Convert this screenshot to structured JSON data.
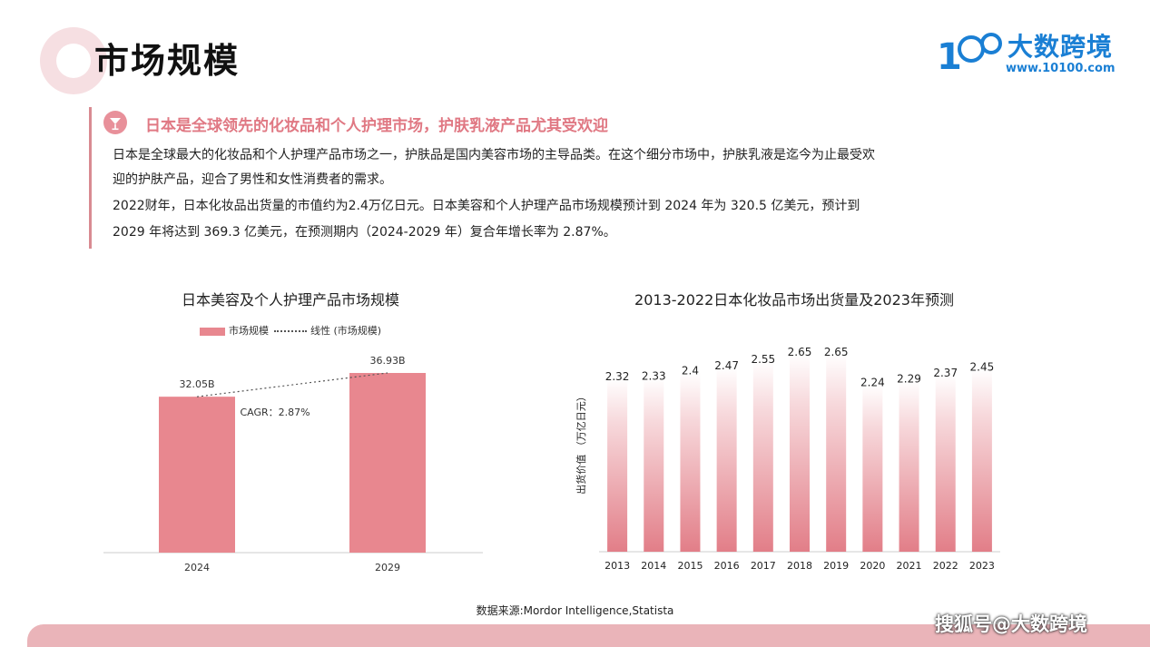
{
  "header": {
    "title": "市场规模",
    "logo_name": "大数跨境",
    "logo_url": "www.10100.com"
  },
  "section": {
    "subheading": "日本是全球领先的化妆品和个人护理市场，护肤乳液产品尤其受欢迎",
    "paragraphs": [
      "日本是全球最大的化妆品和个人护理产品市场之一，护肤品是国内美容市场的主导品类。在这个细分市场中，护肤乳液是迄今为止最受欢",
      "迎的护肤产品，迎合了男性和女性消费者的需求。",
      "2022财年，日本化妆品出货量的市值约为2.4万亿日元。日本美容和个人护理产品市场规模预计到 2024 年为 320.5 亿美元，预计到",
      "2029 年将达到 369.3 亿美元，在预测期内（2024-2029 年）复合年增长率为 2.87%。"
    ]
  },
  "chart_data": [
    {
      "type": "bar",
      "title": "日本美容及个人护理产品市场规模",
      "categories": [
        "2024",
        "2029"
      ],
      "values": [
        32.05,
        36.93
      ],
      "data_labels": [
        "32.05B",
        "36.93B"
      ],
      "legend": [
        "市场规模",
        "线性 (市场规模)"
      ],
      "annotation": "CAGR：2.87%",
      "legend_position": "top",
      "grid": false
    },
    {
      "type": "bar",
      "title": "2013-2022日本化妆品市场出货量及2023年预测",
      "ylabel": "出货价值 （万亿日元）",
      "categories": [
        "2013",
        "2014",
        "2015",
        "2016",
        "2017",
        "2018",
        "2019",
        "2020",
        "2021",
        "2022",
        "2023"
      ],
      "values": [
        2.32,
        2.33,
        2.4,
        2.47,
        2.55,
        2.65,
        2.65,
        2.24,
        2.29,
        2.37,
        2.45
      ],
      "grid": false
    }
  ],
  "footer": {
    "source": "数据来源:Mordor Intelligence,Statista",
    "watermark": "搜狐号@大数跨境"
  },
  "colors": {
    "accent": "#e07883",
    "bar": "#e8878f",
    "logo": "#1a7fd4"
  }
}
